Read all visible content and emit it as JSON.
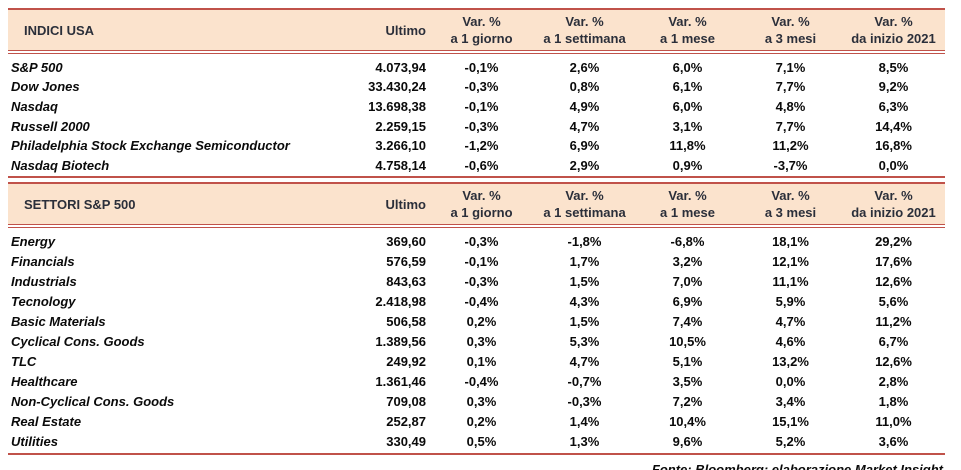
{
  "colors": {
    "header_bg": "#fbe3cd",
    "border_red": "#c0524a",
    "header_text": "#2b2f3a",
    "body_text": "#0a0a0a"
  },
  "columns": {
    "ultimo": "Ultimo",
    "var_label": "Var. %",
    "periods": [
      "a 1 giorno",
      "a 1 settimana",
      "a 1 mese",
      "a 3 mesi",
      "da inizio 2021"
    ]
  },
  "tables": [
    {
      "title": "INDICI USA",
      "rows": [
        {
          "name": "S&P 500",
          "ultimo": "4.073,94",
          "vars": [
            "-0,1%",
            "2,6%",
            "6,0%",
            "7,1%",
            "8,5%"
          ]
        },
        {
          "name": "Dow Jones",
          "ultimo": "33.430,24",
          "vars": [
            "-0,3%",
            "0,8%",
            "6,1%",
            "7,7%",
            "9,2%"
          ]
        },
        {
          "name": "Nasdaq",
          "ultimo": "13.698,38",
          "vars": [
            "-0,1%",
            "4,9%",
            "6,0%",
            "4,8%",
            "6,3%"
          ]
        },
        {
          "name": "Russell 2000",
          "ultimo": "2.259,15",
          "vars": [
            "-0,3%",
            "4,7%",
            "3,1%",
            "7,7%",
            "14,4%"
          ]
        },
        {
          "name": "Philadelphia Stock Exchange Semiconductor",
          "ultimo": "3.266,10",
          "vars": [
            "-1,2%",
            "6,9%",
            "11,8%",
            "11,2%",
            "16,8%"
          ]
        },
        {
          "name": "Nasdaq Biotech",
          "ultimo": "4.758,14",
          "vars": [
            "-0,6%",
            "2,9%",
            "0,9%",
            "-3,7%",
            "0,0%"
          ]
        }
      ]
    },
    {
      "title": "SETTORI S&P 500",
      "rows": [
        {
          "name": "Energy",
          "ultimo": "369,60",
          "vars": [
            "-0,3%",
            "-1,8%",
            "-6,8%",
            "18,1%",
            "29,2%"
          ]
        },
        {
          "name": "Financials",
          "ultimo": "576,59",
          "vars": [
            "-0,1%",
            "1,7%",
            "3,2%",
            "12,1%",
            "17,6%"
          ]
        },
        {
          "name": "Industrials",
          "ultimo": "843,63",
          "vars": [
            "-0,3%",
            "1,5%",
            "7,0%",
            "11,1%",
            "12,6%"
          ]
        },
        {
          "name": "Tecnology",
          "ultimo": "2.418,98",
          "vars": [
            "-0,4%",
            "4,3%",
            "6,9%",
            "5,9%",
            "5,6%"
          ]
        },
        {
          "name": "Basic Materials",
          "ultimo": "506,58",
          "vars": [
            "0,2%",
            "1,5%",
            "7,4%",
            "4,7%",
            "11,2%"
          ]
        },
        {
          "name": "Cyclical Cons. Goods",
          "ultimo": "1.389,56",
          "vars": [
            "0,3%",
            "5,3%",
            "10,5%",
            "4,6%",
            "6,7%"
          ]
        },
        {
          "name": "TLC",
          "ultimo": "249,92",
          "vars": [
            "0,1%",
            "4,7%",
            "5,1%",
            "13,2%",
            "12,6%"
          ]
        },
        {
          "name": "Healthcare",
          "ultimo": "1.361,46",
          "vars": [
            "-0,4%",
            "-0,7%",
            "3,5%",
            "0,0%",
            "2,8%"
          ]
        },
        {
          "name": "Non-Cyclical Cons. Goods",
          "ultimo": "709,08",
          "vars": [
            "0,3%",
            "-0,3%",
            "7,2%",
            "3,4%",
            "1,8%"
          ]
        },
        {
          "name": "Real Estate",
          "ultimo": "252,87",
          "vars": [
            "0,2%",
            "1,4%",
            "10,4%",
            "15,1%",
            "11,0%"
          ]
        },
        {
          "name": "Utilities",
          "ultimo": "330,49",
          "vars": [
            "0,5%",
            "1,3%",
            "9,6%",
            "5,2%",
            "3,6%"
          ]
        }
      ]
    }
  ],
  "footer": "Fonte: Bloomberg; elaborazione Market Insight"
}
